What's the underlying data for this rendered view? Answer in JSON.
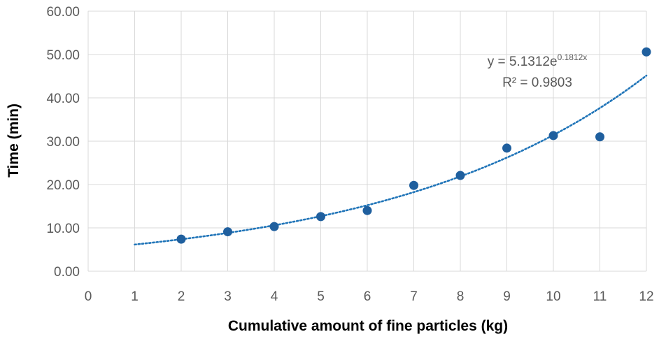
{
  "chart_data": {
    "type": "scatter",
    "title": "",
    "xlabel": "Cumulative amount of fine particles (kg)",
    "ylabel": "Time (min)",
    "xlim": [
      0,
      12
    ],
    "ylim": [
      0,
      60
    ],
    "x_ticks": [
      "0",
      "1",
      "2",
      "3",
      "4",
      "5",
      "6",
      "7",
      "8",
      "9",
      "10",
      "11",
      "12"
    ],
    "y_ticks": [
      "0.00",
      "10.00",
      "20.00",
      "30.00",
      "40.00",
      "50.00",
      "60.00"
    ],
    "grid": true,
    "legend": "none",
    "series": [
      {
        "name": "Time",
        "x": [
          2,
          3,
          4,
          5,
          6,
          7,
          8,
          9,
          10,
          11,
          12
        ],
        "y": [
          7.4,
          9.1,
          10.3,
          12.6,
          14.0,
          19.8,
          22.1,
          28.4,
          31.3,
          31.0,
          50.6
        ]
      }
    ],
    "trendline": {
      "type": "exponential",
      "coefficient": 5.1312,
      "exponent": 0.1812,
      "x_range": [
        1,
        12
      ],
      "equation_prefix": "y = 5.1312e",
      "equation_exponent": "0.1812x",
      "r_squared_label": "R² = 0.9803"
    },
    "colors": {
      "marker": "#1f5f9e",
      "trendline": "#1f74b8",
      "grid": "#d9d9d9",
      "tick_text": "#595959",
      "axis_title": "#000000"
    }
  }
}
